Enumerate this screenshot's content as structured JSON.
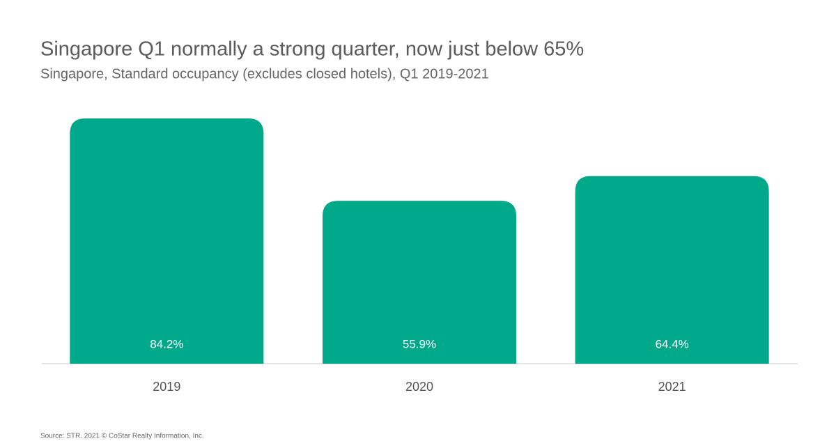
{
  "chart_data": {
    "type": "bar",
    "title": "Singapore Q1 normally a strong quarter, now just below 65%",
    "subtitle": "Singapore, Standard occupancy (excludes closed hotels), Q1 2019-2021",
    "categories": [
      "2019",
      "2020",
      "2021"
    ],
    "values": [
      84.2,
      55.9,
      64.4
    ],
    "value_labels": [
      "84.2%",
      "55.9%",
      "64.4%"
    ],
    "color": "#00a88a",
    "source": "Source: STR. 2021 © CoStar Realty Information, Inc."
  }
}
